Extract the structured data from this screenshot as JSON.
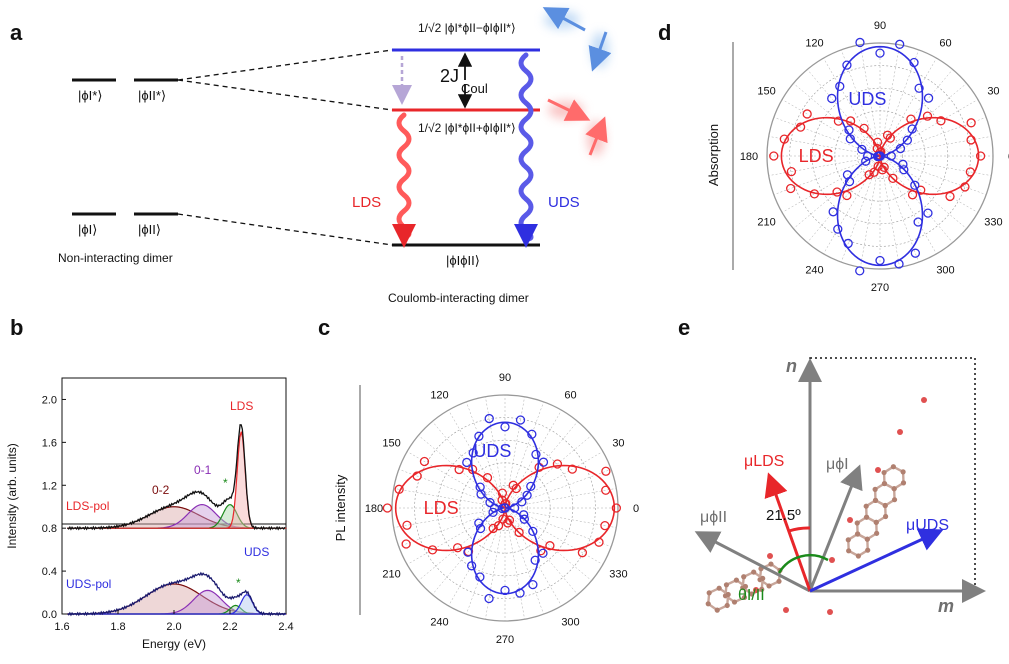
{
  "panel_labels": [
    "a",
    "b",
    "c",
    "d",
    "e"
  ],
  "colors": {
    "lds": "#e8262a",
    "uds": "#2f2fe0",
    "black": "#111111",
    "grey": "#808080",
    "green": "#1b8a1b",
    "dashed_arrow": "#b6a6d6",
    "dark_red": "#7a0d0d",
    "purple": "#8a2fb5"
  },
  "panel_a": {
    "left_states": {
      "excited_1": "|ϕI*⟩",
      "excited_2": "|ϕII*⟩",
      "ground_1": "|ϕI⟩",
      "ground_2": "|ϕII⟩"
    },
    "left_caption": "Non-interacting dimer",
    "uds_state": "1/√2 |ϕI*ϕII−ϕIϕII*⟩",
    "lds_state": "1/√2 |ϕI*ϕII+ϕIϕII*⟩",
    "coupling": "2J",
    "coupling_sub": "Coul",
    "ground_state": "|ϕIϕII⟩",
    "lds": "LDS",
    "uds": "UDS",
    "right_caption": "Coulomb-interacting dimer"
  },
  "panel_b": {
    "ylabel": "Intensity (arb. units)",
    "xlabel": "Energy (eV)",
    "xticks": [
      "1.6",
      "1.8",
      "2.0",
      "2.2",
      "2.4"
    ],
    "yticks": [
      "0.0",
      "0.4",
      "0.8",
      "1.2",
      "1.6",
      "2.0"
    ],
    "labels": {
      "lds": "LDS",
      "uds": "UDS",
      "v02": "0-2",
      "v01": "0-1",
      "star": "*",
      "ldspol": "LDS-pol",
      "udspol": "UDS-pol"
    }
  },
  "chart_data": [
    {
      "type": "line",
      "xlabel": "Energy (eV)",
      "ylabel": "Intensity (arb. units)",
      "xlim": [
        1.6,
        2.4
      ],
      "ylim": [
        0,
        2.2
      ],
      "series": [
        {
          "name": "LDS-pol",
          "x": [
            1.65,
            1.75,
            1.85,
            1.95,
            2.0,
            2.05,
            2.1,
            2.15,
            2.2,
            2.23,
            2.25,
            2.27,
            2.3,
            2.35
          ],
          "values": [
            0.82,
            0.86,
            0.92,
            1.0,
            1.04,
            1.08,
            1.1,
            1.06,
            1.05,
            1.3,
            1.82,
            1.3,
            0.92,
            0.82
          ]
        },
        {
          "name": "UDS-pol",
          "x": [
            1.65,
            1.75,
            1.85,
            1.95,
            2.0,
            2.05,
            2.1,
            2.15,
            2.2,
            2.23,
            2.25,
            2.27,
            2.3,
            2.35
          ],
          "values": [
            0.02,
            0.08,
            0.2,
            0.33,
            0.38,
            0.42,
            0.43,
            0.33,
            0.25,
            0.3,
            0.38,
            0.28,
            0.1,
            0.02
          ]
        }
      ]
    },
    {
      "type": "scatter",
      "title": "",
      "polar": true,
      "ylabel": "PL intensity",
      "angle_ticks": [
        "0",
        "30",
        "60",
        "90",
        "120",
        "150",
        "180",
        "210",
        "240",
        "270",
        "300",
        "330"
      ],
      "series": [
        {
          "name": "LDS",
          "pattern": "cos^2",
          "orientation_deg": 0
        },
        {
          "name": "UDS",
          "pattern": "cos^2",
          "orientation_deg": 90,
          "relative_amplitude": 0.78
        }
      ]
    },
    {
      "type": "scatter",
      "title": "",
      "polar": true,
      "ylabel": "Absorption",
      "angle_ticks": [
        "0",
        "30",
        "60",
        "90",
        "120",
        "150",
        "180",
        "210",
        "240",
        "270",
        "300",
        "330"
      ],
      "series": [
        {
          "name": "LDS",
          "pattern": "cos^2",
          "orientation_deg": 0,
          "relative_amplitude": 0.9
        },
        {
          "name": "UDS",
          "pattern": "cos^2",
          "orientation_deg": 90,
          "relative_amplitude": 1.0
        }
      ]
    }
  ],
  "panel_e": {
    "axis_n": "n",
    "axis_m": "m",
    "mu_phiI": "μϕI",
    "mu_phiII": "μϕII",
    "mu_lds": "μLDS",
    "mu_uds": "μUDS",
    "angle": "21.5º",
    "theta": "θI/II"
  }
}
